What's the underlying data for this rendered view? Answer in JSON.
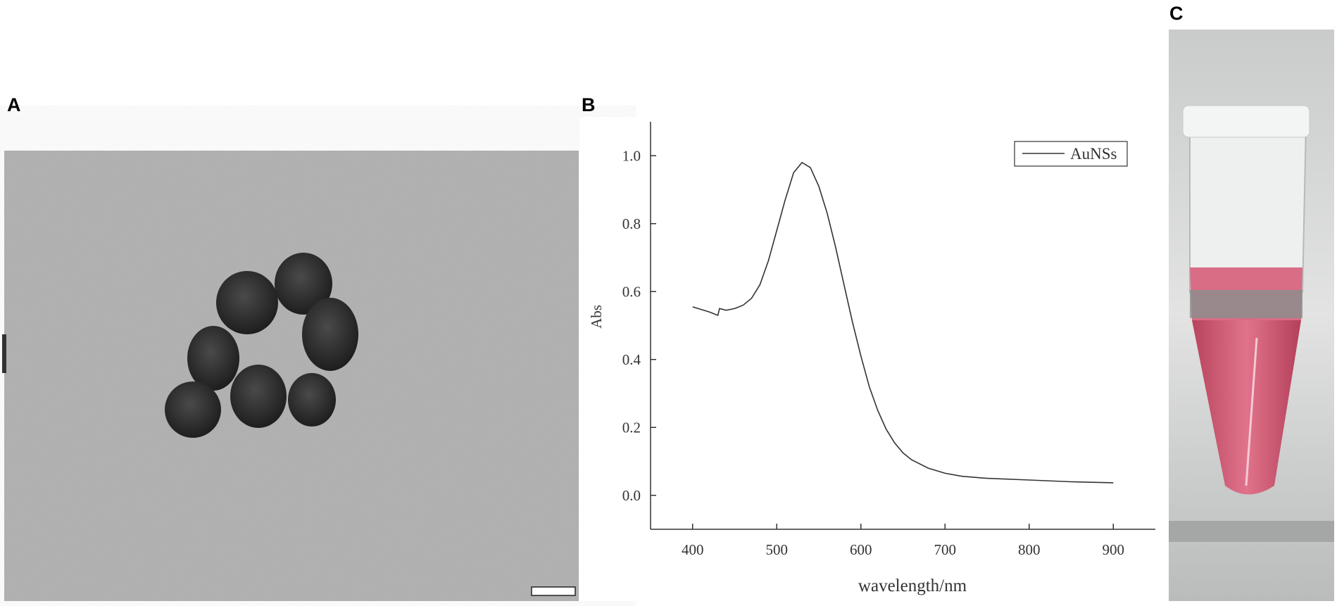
{
  "panel_labels": [
    "A",
    "B",
    "C"
  ],
  "chart_data": {
    "type": "line",
    "x_label": "wavelength/nm",
    "y_label": "Abs",
    "x": [
      400,
      420,
      430,
      432,
      440,
      450,
      460,
      470,
      480,
      490,
      500,
      510,
      520,
      530,
      540,
      550,
      560,
      570,
      580,
      590,
      600,
      610,
      620,
      630,
      640,
      650,
      660,
      680,
      700,
      720,
      750,
      800,
      850,
      900
    ],
    "series": [
      {
        "name": "AuNSs",
        "color": "#333333",
        "values": [
          0.555,
          0.54,
          0.53,
          0.55,
          0.545,
          0.55,
          0.56,
          0.58,
          0.62,
          0.69,
          0.78,
          0.87,
          0.95,
          0.98,
          0.965,
          0.91,
          0.83,
          0.73,
          0.62,
          0.51,
          0.41,
          0.32,
          0.25,
          0.195,
          0.155,
          0.125,
          0.105,
          0.08,
          0.065,
          0.056,
          0.05,
          0.045,
          0.04,
          0.037
        ]
      }
    ],
    "xlim": [
      350,
      950
    ],
    "ylim": [
      -0.1,
      1.1
    ],
    "xticks": [
      400,
      500,
      600,
      700,
      800,
      900
    ],
    "yticks": [
      {
        "value": 0,
        "label": "0.0"
      },
      0.2,
      0.4,
      0.6,
      0.8,
      {
        "value": 1,
        "label": "1.0"
      }
    ],
    "legend": "upper right"
  }
}
